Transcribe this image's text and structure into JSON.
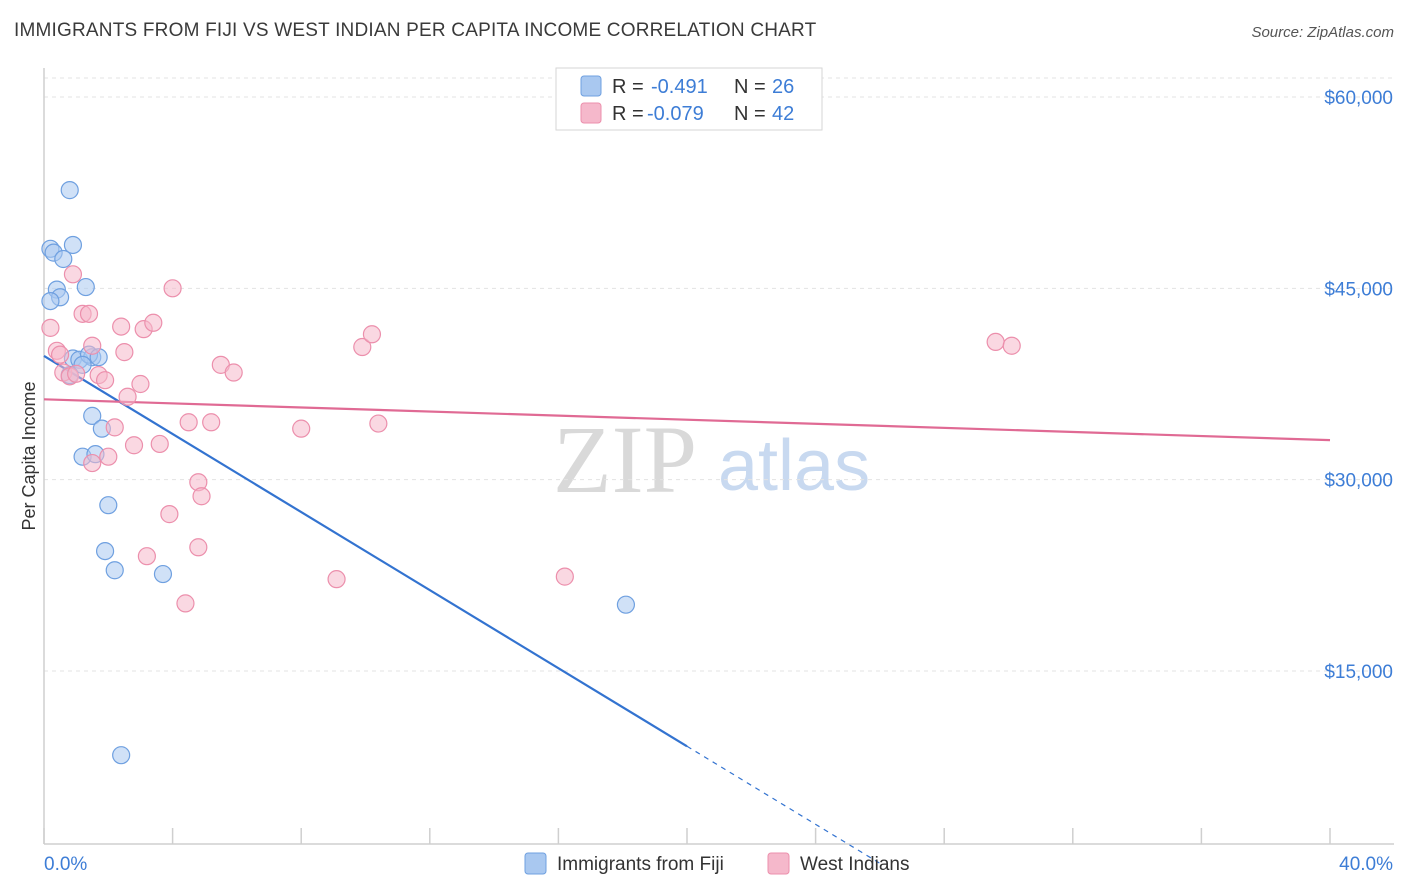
{
  "title": "IMMIGRANTS FROM FIJI VS WEST INDIAN PER CAPITA INCOME CORRELATION CHART",
  "source": "Source: ZipAtlas.com",
  "watermark": {
    "zip": "ZIP",
    "atlas": "atlas"
  },
  "legend": {
    "rows": [
      {
        "r_label": "R =",
        "r_value": "-0.491",
        "n_label": "N =",
        "n_value": "26",
        "color": "#a9c8f0"
      },
      {
        "r_label": "R =",
        "r_value": "-0.079",
        "n_label": "N =",
        "n_value": "42",
        "color": "#f5b8cb"
      }
    ]
  },
  "bottom_legend": [
    {
      "label": "Immigrants from Fiji",
      "color": "#a9c8f0"
    },
    {
      "label": "West Indians",
      "color": "#f5b8cb"
    }
  ],
  "chart_data": {
    "type": "scatter",
    "title": "IMMIGRANTS FROM FIJI VS WEST INDIAN PER CAPITA INCOME CORRELATION CHART",
    "xlabel": "",
    "ylabel": "Per Capita Income",
    "xlim": [
      0,
      40
    ],
    "ylim": [
      0,
      63000
    ],
    "x_tick_labels": [
      "0.0%",
      "40.0%"
    ],
    "y_ticks": [
      {
        "value": 60000,
        "label": "$60,000"
      },
      {
        "value": 45000,
        "label": "$45,000"
      },
      {
        "value": 30000,
        "label": "$30,000"
      },
      {
        "value": 15000,
        "label": "$15,000"
      }
    ],
    "grid": true,
    "legend_position": "top-center",
    "series": [
      {
        "name": "Immigrants from Fiji",
        "color": "#a9c8f0",
        "stroke": "#6fa0e0",
        "trend_color": "#3373d0",
        "trend": {
          "x0": 0.0,
          "y0": 39700,
          "x1": 20.0,
          "y1": 9100,
          "x_dash_end": 26.0
        },
        "points": [
          [
            0.8,
            52700
          ],
          [
            0.2,
            48100
          ],
          [
            0.9,
            48400
          ],
          [
            0.3,
            47800
          ],
          [
            0.6,
            47300
          ],
          [
            0.4,
            44900
          ],
          [
            0.5,
            44300
          ],
          [
            1.3,
            45100
          ],
          [
            0.2,
            44000
          ],
          [
            0.9,
            39500
          ],
          [
            1.1,
            39400
          ],
          [
            1.5,
            39600
          ],
          [
            1.4,
            39800
          ],
          [
            1.7,
            39600
          ],
          [
            1.2,
            39000
          ],
          [
            0.8,
            38200
          ],
          [
            1.5,
            35000
          ],
          [
            1.8,
            34000
          ],
          [
            1.2,
            31800
          ],
          [
            1.6,
            32000
          ],
          [
            2.0,
            28000
          ],
          [
            1.9,
            24400
          ],
          [
            2.2,
            22900
          ],
          [
            3.7,
            22600
          ],
          [
            18.1,
            20200
          ],
          [
            2.4,
            8400
          ]
        ]
      },
      {
        "name": "West Indians",
        "color": "#f5b8cb",
        "stroke": "#ec8fac",
        "trend_color": "#e06a94",
        "trend": {
          "x0": 0.0,
          "y0": 36300,
          "x1": 40.0,
          "y1": 33100
        },
        "points": [
          [
            0.2,
            41900
          ],
          [
            0.4,
            40100
          ],
          [
            0.5,
            39800
          ],
          [
            0.6,
            38400
          ],
          [
            0.8,
            38100
          ],
          [
            0.9,
            46100
          ],
          [
            1.2,
            43000
          ],
          [
            1.4,
            43000
          ],
          [
            1.5,
            40500
          ],
          [
            1.7,
            38200
          ],
          [
            1.9,
            37800
          ],
          [
            2.0,
            31800
          ],
          [
            2.2,
            34100
          ],
          [
            2.4,
            42000
          ],
          [
            2.5,
            40000
          ],
          [
            2.6,
            36500
          ],
          [
            2.8,
            32700
          ],
          [
            3.0,
            37500
          ],
          [
            3.1,
            41800
          ],
          [
            3.4,
            42300
          ],
          [
            3.6,
            32800
          ],
          [
            3.9,
            27300
          ],
          [
            4.0,
            45000
          ],
          [
            4.5,
            34500
          ],
          [
            4.8,
            24700
          ],
          [
            4.8,
            29800
          ],
          [
            4.9,
            28700
          ],
          [
            5.2,
            34500
          ],
          [
            5.5,
            39000
          ],
          [
            5.9,
            38400
          ],
          [
            4.4,
            20300
          ],
          [
            3.2,
            24000
          ],
          [
            8.0,
            34000
          ],
          [
            9.1,
            22200
          ],
          [
            9.9,
            40400
          ],
          [
            10.2,
            41400
          ],
          [
            10.4,
            34400
          ],
          [
            16.2,
            22400
          ],
          [
            29.6,
            40800
          ],
          [
            30.1,
            40500
          ],
          [
            1.5,
            31300
          ],
          [
            1.0,
            38300
          ]
        ]
      }
    ]
  }
}
